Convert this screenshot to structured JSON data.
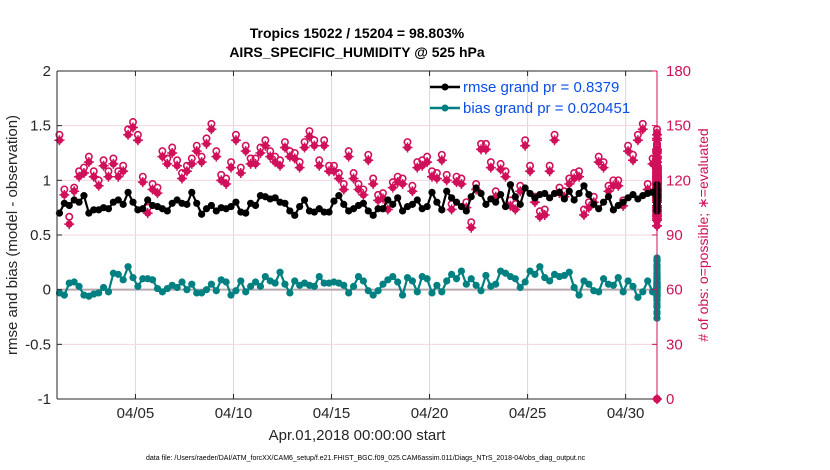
{
  "chart_data": {
    "type": "line",
    "title": [
      "Tropics 15022 / 15204 = 98.803%",
      "AIRS_SPECIFIC_HUMIDITY @ 525 hPa"
    ],
    "xlabel": "Apr.01,2018 00:00:00 start",
    "ylabel": "rmse and bias (model - observation)",
    "y2label": "# of obs: o=possible; ∗=evaluated",
    "footnote": "data file: /Users/raeder/DAI/ATM_forcXX/CAM6_setup/f.e21.FHIST_BGC.f09_025.CAM6assim.011/Diags_NTrS_2018-04/obs_diag_output.nc",
    "xlim_days": [
      0,
      30.6
    ],
    "ylim": [
      -1,
      2
    ],
    "y2lim": [
      0,
      180
    ],
    "x_ticks": [
      {
        "day": 4,
        "label": "04/05"
      },
      {
        "day": 9,
        "label": "04/10"
      },
      {
        "day": 14,
        "label": "04/15"
      },
      {
        "day": 19,
        "label": "04/20"
      },
      {
        "day": 24,
        "label": "04/25"
      },
      {
        "day": 29,
        "label": "04/30"
      }
    ],
    "y_ticks": [
      {
        "v": -1,
        "label": "-1"
      },
      {
        "v": -0.5,
        "label": "-0.5"
      },
      {
        "v": 0,
        "label": "0"
      },
      {
        "v": 0.5,
        "label": "0.5"
      },
      {
        "v": 1,
        "label": "1"
      },
      {
        "v": 1.5,
        "label": "1.5"
      },
      {
        "v": 2,
        "label": "2"
      }
    ],
    "y2_ticks": [
      {
        "v": 0,
        "label": "0"
      },
      {
        "v": 30,
        "label": "30"
      },
      {
        "v": 60,
        "label": "60"
      },
      {
        "v": 90,
        "label": "90"
      },
      {
        "v": 120,
        "label": "120"
      },
      {
        "v": 150,
        "label": "150"
      },
      {
        "v": 180,
        "label": "180"
      }
    ],
    "grid": true,
    "legend": {
      "placement": "top-right",
      "entries": [
        "rmse grand pr = 0.8379",
        "bias grand pr = 0.020451"
      ]
    },
    "colors": {
      "rmse": "#000000",
      "bias": "#008080",
      "obs": "#d0105a",
      "grid": "#d9d9d9",
      "zero": "#b8a8ae"
    },
    "time_step_days": 0.25,
    "series": [
      {
        "name": "rmse",
        "values": [
          0.7,
          0.79,
          0.77,
          0.82,
          0.8,
          0.86,
          0.7,
          0.73,
          0.73,
          0.75,
          0.74,
          0.8,
          0.82,
          0.78,
          0.89,
          0.8,
          0.73,
          0.74,
          0.82,
          0.77,
          0.76,
          0.74,
          0.72,
          0.79,
          0.82,
          0.79,
          0.78,
          0.89,
          0.79,
          0.69,
          0.74,
          0.77,
          0.72,
          0.75,
          0.74,
          0.76,
          0.8,
          0.71,
          0.7,
          0.79,
          0.77,
          0.86,
          0.85,
          0.83,
          0.84,
          0.8,
          0.79,
          0.72,
          0.68,
          0.76,
          0.82,
          0.72,
          0.71,
          0.74,
          0.71,
          0.71,
          0.81,
          0.86,
          0.78,
          0.72,
          0.74,
          0.77,
          0.79,
          0.72,
          0.68,
          0.74,
          0.74,
          0.82,
          0.78,
          0.84,
          0.72,
          0.76,
          0.78,
          0.82,
          0.74,
          0.76,
          0.89,
          0.8,
          0.73,
          0.9,
          0.84,
          0.8,
          0.76,
          0.72,
          0.85,
          0.93,
          0.88,
          0.78,
          0.83,
          0.8,
          0.87,
          0.76,
          0.96,
          0.85,
          0.78,
          0.93,
          0.88,
          0.84,
          0.87,
          0.88,
          0.84,
          0.88,
          0.89,
          0.83,
          0.9,
          0.82,
          0.88,
          0.95,
          0.87,
          0.78,
          0.74,
          0.8,
          0.85,
          0.73,
          0.77,
          0.8,
          0.84,
          0.87,
          0.83,
          0.86,
          0.88,
          0.89,
          0.85,
          0.91,
          0.84,
          0.86,
          0.83,
          0.86,
          0.82,
          0.9,
          0.92,
          0.84,
          0.85,
          0.72,
          0.78,
          0.75,
          0.8,
          0.82,
          0.84,
          0.81,
          0.86,
          0.84,
          0.88,
          0.86,
          0.85,
          0.8,
          0.89,
          0.74,
          0.78,
          0.79,
          0.81,
          0.79,
          0.81,
          0.77,
          0.84,
          0.9,
          0.85,
          0.83,
          0.84,
          0.8,
          0.84,
          0.91,
          0.9,
          0.92,
          0.84,
          0.87,
          0.82,
          0.92,
          0.94,
          0.85,
          0.87,
          0.76,
          0.72,
          0.82,
          0.85,
          0.88,
          0.81,
          0.83,
          0.86,
          0.84,
          0.88,
          0.86,
          0.82,
          0.86,
          0.88,
          0.82,
          0.86,
          0.82,
          0.84,
          0.86,
          0.91,
          0.82,
          0.88,
          0.87,
          0.85,
          0.89,
          0.87,
          0.91,
          0.87,
          0.82,
          0.78,
          0.85,
          0.88,
          0.86,
          0.86,
          0.9,
          0.87,
          0.96,
          0.91,
          0.91,
          0.88,
          0.93,
          0.89,
          0.87,
          0.86,
          0.88,
          0.86,
          0.84,
          0.86
        ]
      },
      {
        "name": "bias",
        "values": [
          -0.03,
          -0.05,
          0.06,
          0.07,
          0.03,
          -0.05,
          -0.06,
          -0.04,
          -0.03,
          0.02,
          -0.02,
          0.15,
          0.14,
          0.09,
          0.21,
          0.11,
          0.03,
          0.1,
          0.1,
          0.09,
          0.01,
          -0.02,
          0.01,
          0.04,
          0.02,
          0.07,
          0.0,
          0.05,
          -0.03,
          -0.03,
          0.0,
          0.05,
          -0.01,
          0.09,
          0.07,
          -0.05,
          -0.01,
          0.08,
          -0.02,
          0.03,
          0.07,
          0.03,
          0.12,
          0.08,
          0.06,
          0.16,
          0.05,
          -0.03,
          0.08,
          0.04,
          0.06,
          0.04,
          0.03,
          0.12,
          0.06,
          0.06,
          0.07,
          0.06,
          0.04,
          -0.03,
          0.03,
          0.12,
          0.08,
          -0.01,
          -0.05,
          -0.01,
          0.05,
          0.09,
          0.12,
          0.07,
          -0.05,
          0.11,
          0.08,
          -0.02,
          0.12,
          0.1,
          -0.03,
          0.04,
          -0.02,
          0.08,
          0.14,
          0.1,
          0.17,
          0.05,
          0.1,
          0.04,
          -0.01,
          0.13,
          0.03,
          0.05,
          0.17,
          0.15,
          0.12,
          0.1,
          0.02,
          0.07,
          0.17,
          0.14,
          0.21,
          0.11,
          0.08,
          0.14,
          0.12,
          0.13,
          0.16,
          0.02,
          -0.05,
          0.08,
          0.05,
          -0.01,
          -0.02,
          0.1,
          0.05,
          0.04,
          0.11,
          -0.02,
          0.08,
          0.03,
          -0.07,
          -0.02,
          0.08,
          -0.02,
          0.07,
          -0.04,
          0.07,
          -0.1,
          0.29,
          0.02,
          0.27,
          -0.04,
          0.26,
          0.23,
          0.02,
          0.18,
          0.05,
          0.15,
          -0.05,
          0.22,
          0.27,
          0.19,
          -0.05,
          0.21,
          0.15,
          0.03,
          0.12,
          0.07,
          0.13,
          0.01,
          0.14,
          0.02,
          -0.02,
          0.05,
          0.1,
          0.08,
          0.12,
          0.02,
          0.12,
          0.02,
          0.01,
          0.12,
          0.15,
          0.09,
          0.03,
          0.01,
          0.02,
          -0.04,
          -0.04,
          0.05,
          0.04,
          0.1,
          0.04,
          0.07,
          0.1,
          0.07,
          0.06,
          0.06,
          0.04,
          0.03,
          0.03,
          0.02,
          0.02,
          -0.07,
          -0.02,
          0.02,
          0.03,
          0.06,
          0.0,
          -0.01,
          0.05,
          0.0,
          0.03,
          0.06,
          -0.09,
          0.0,
          0.03,
          0.06,
          -0.05,
          0.02,
          0.06,
          -0.13,
          -0.03,
          0.08,
          -0.05,
          -0.16,
          0.0,
          -0.03,
          -0.05,
          -0.2,
          -0.06,
          0.1,
          -0.02,
          -0.07,
          -0.14,
          -0.09,
          -0.06,
          -0.09,
          0.03,
          0.06,
          -0.15,
          0.11,
          -0.07,
          -0.22,
          -0.05,
          0.04,
          -0.26,
          -0.05,
          -0.26,
          -0.04,
          0.0
        ]
      },
      {
        "name": "obs_possible",
        "axis": "right",
        "values": [
          145,
          115,
          100,
          116,
          125,
          127,
          133,
          125,
          120,
          131,
          125,
          132,
          125,
          128,
          148,
          152,
          145,
          122,
          105,
          118,
          116,
          136,
          132,
          138,
          131,
          124,
          128,
          132,
          139,
          133,
          143,
          151,
          136,
          123,
          121,
          130,
          145,
          127,
          139,
          132,
          132,
          138,
          142,
          136,
          133,
          131,
          141,
          136,
          135,
          130,
          141,
          147,
          142,
          131,
          142,
          128,
          128,
          124,
          118,
          136,
          124,
          118,
          115,
          134,
          121,
          112,
          113,
          107,
          119,
          122,
          121,
          141,
          117,
          130,
          131,
          133,
          125,
          124,
          134,
          123,
          107,
          122,
          121,
          108,
          97,
          118,
          140,
          140,
          130,
          114,
          129,
          125,
          109,
          107,
          117,
          142,
          128,
          111,
          103,
          104,
          128,
          145,
          116,
          114,
          121,
          124,
          125,
          104,
          108,
          111,
          133,
          130,
          117,
          120,
          120,
          109,
          139,
          134,
          145,
          151,
          118,
          132,
          126,
          125,
          129,
          122,
          121,
          136,
          104,
          104,
          120,
          116,
          108,
          121,
          135,
          117,
          116,
          121,
          126,
          116,
          130,
          122,
          105,
          116,
          139,
          124,
          128,
          128,
          122,
          126,
          98,
          98,
          117,
          119,
          123,
          115,
          126,
          115,
          113,
          138,
          113,
          119,
          125,
          127,
          119,
          125,
          126,
          102,
          127,
          101,
          140,
          120,
          118,
          112,
          109,
          103,
          140,
          125,
          133,
          115,
          130,
          109,
          128,
          106,
          118,
          131,
          118,
          131,
          129,
          124,
          148,
          116,
          146,
          130,
          145,
          112,
          121,
          119,
          114,
          120,
          118,
          113,
          103,
          135,
          111,
          107,
          114,
          126,
          115,
          122,
          123,
          129,
          125,
          133,
          124,
          120,
          116,
          121,
          0
        ]
      },
      {
        "name": "obs_evaluated",
        "axis": "right",
        "values": [
          142,
          112,
          96,
          114,
          122,
          124,
          130,
          122,
          117,
          128,
          122,
          129,
          122,
          125,
          145,
          149,
          142,
          119,
          102,
          115,
          113,
          133,
          129,
          135,
          128,
          121,
          125,
          129,
          136,
          130,
          140,
          148,
          133,
          120,
          118,
          127,
          142,
          124,
          136,
          129,
          129,
          135,
          139,
          133,
          130,
          128,
          138,
          133,
          132,
          127,
          138,
          144,
          139,
          128,
          139,
          125,
          125,
          121,
          115,
          133,
          121,
          115,
          112,
          131,
          118,
          109,
          110,
          104,
          116,
          119,
          118,
          138,
          114,
          127,
          128,
          130,
          122,
          121,
          131,
          120,
          104,
          119,
          118,
          105,
          94,
          115,
          137,
          137,
          127,
          111,
          126,
          122,
          106,
          104,
          114,
          139,
          125,
          108,
          100,
          101,
          125,
          142,
          113,
          111,
          118,
          121,
          122,
          101,
          105,
          108,
          130,
          127,
          114,
          117,
          117,
          106,
          136,
          131,
          142,
          148,
          115,
          129,
          123,
          122,
          126,
          119,
          118,
          133,
          101,
          101,
          117,
          113,
          105,
          118,
          132,
          114,
          113,
          118,
          123,
          113,
          127,
          119,
          102,
          113,
          136,
          121,
          125,
          125,
          119,
          123,
          95,
          95,
          114,
          116,
          120,
          112,
          123,
          112,
          110,
          135,
          110,
          116,
          122,
          124,
          116,
          122,
          123,
          99,
          124,
          98,
          137,
          117,
          115,
          109,
          106,
          100,
          137,
          122,
          130,
          112,
          127,
          106,
          125,
          103,
          115,
          128,
          115,
          128,
          126,
          121,
          145,
          113,
          143,
          127,
          142,
          109,
          118,
          116,
          111,
          117,
          115,
          110,
          100,
          132,
          108,
          104,
          111,
          123,
          112,
          119,
          120,
          126,
          122,
          130,
          121,
          117,
          113,
          118,
          0
        ]
      }
    ]
  }
}
